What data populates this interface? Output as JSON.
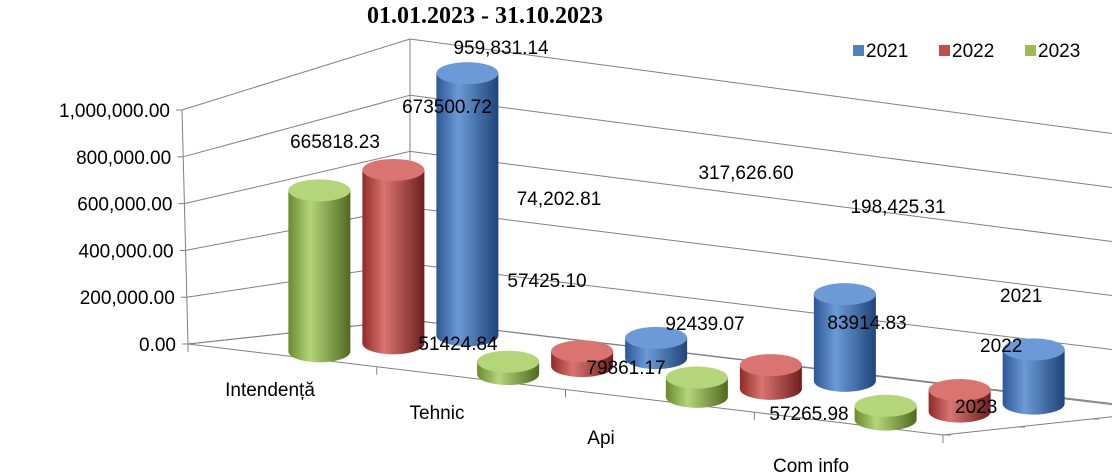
{
  "chart_data": {
    "type": "bar",
    "style": "3d-cylinder",
    "title": "01.01.2023 - 31.10.2023",
    "categories": [
      "Intendență",
      "Tehnic",
      "Api",
      "Com info"
    ],
    "series": [
      {
        "name": "2021",
        "color": "#4f81bd",
        "values": [
          959831.14,
          74202.81,
          317626.6,
          198425.31
        ],
        "labels": [
          "959,831.14",
          "74,202.81",
          "317,626.60",
          "198,425.31"
        ]
      },
      {
        "name": "2022",
        "color": "#c0504d",
        "values": [
          673500.72,
          57425.1,
          92439.07,
          83914.83
        ],
        "labels": [
          "673500.72",
          "57425.10",
          "92439.07",
          "83914.83"
        ]
      },
      {
        "name": "2023",
        "color": "#9bbb59",
        "values": [
          665818.23,
          51424.84,
          79861.17,
          57265.98
        ],
        "labels": [
          "665818.23",
          "51424.84",
          "79861.17",
          "57265.98"
        ]
      }
    ],
    "y_ticks": [
      "0.00",
      "200,000.00",
      "400,000.00",
      "600,000.00",
      "800,000.00",
      "1,000,000.00"
    ],
    "depth_labels": [
      "2021",
      "2022",
      "2023"
    ],
    "ylim": [
      0,
      1000000
    ],
    "grid": true,
    "legend_position": "top-right"
  }
}
